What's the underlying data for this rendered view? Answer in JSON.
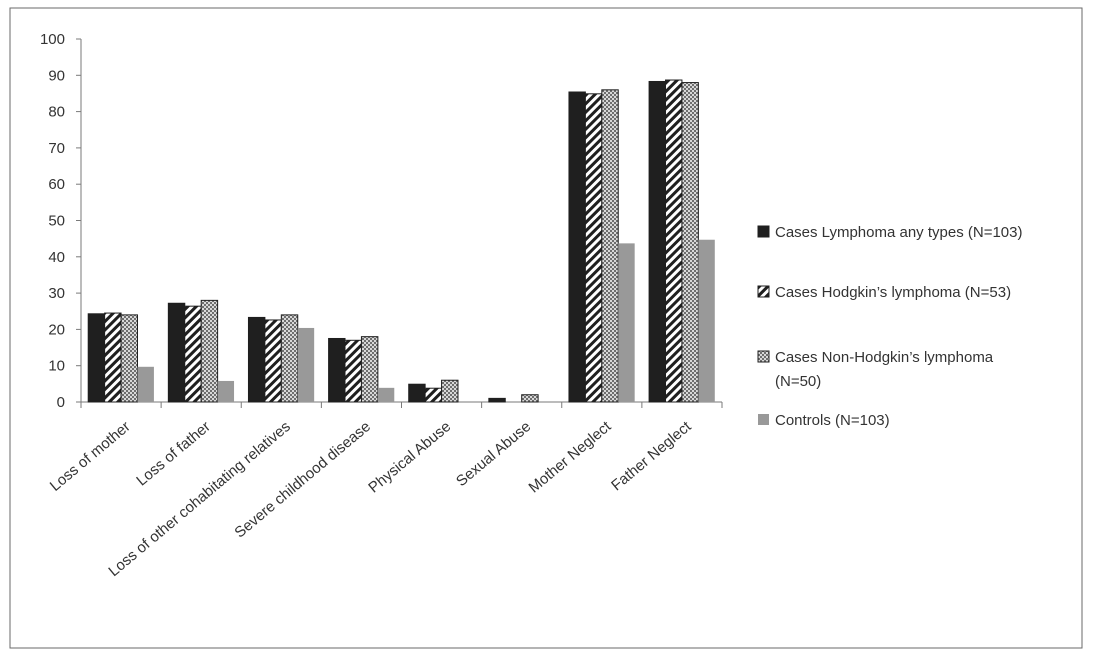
{
  "chart_data": {
    "type": "bar",
    "title": "",
    "xlabel": "",
    "ylabel": "",
    "ylim": [
      0,
      100
    ],
    "yticks": [
      0,
      10,
      20,
      30,
      40,
      50,
      60,
      70,
      80,
      90,
      100
    ],
    "grid": false,
    "legend_position": "right",
    "categories": [
      "Loss of mother",
      "Loss of father",
      "Loss of other cohabitating relatives",
      "Severe childhood disease",
      "Physical Abuse",
      "Sexual Abuse",
      "Mother Neglect",
      "Father Neglect"
    ],
    "series": [
      {
        "name": "Cases Lymphoma any types (N=103)",
        "legend_lines": [
          "Cases Lymphoma any types (N=103)"
        ],
        "color": "#1f1f1f",
        "pattern": "solid",
        "values": [
          24.3,
          27.2,
          23.3,
          17.5,
          4.9,
          1.0,
          85.4,
          88.3
        ]
      },
      {
        "name": "Cases Hodgkin’s lymphoma (N=53)",
        "legend_lines": [
          "Cases Hodgkin’s lymphoma (N=53)"
        ],
        "color": "#1f1f1f",
        "pattern": "diagonal",
        "values": [
          24.5,
          26.4,
          22.6,
          17.0,
          3.8,
          0.0,
          84.9,
          88.7
        ]
      },
      {
        "name": "Cases Non-Hodgkin’s lymphoma (N=50)",
        "legend_lines": [
          "Cases Non-Hodgkin’s lymphoma",
          "(N=50)"
        ],
        "color": "#8a8a8a",
        "pattern": "dotted",
        "values": [
          24.0,
          28.0,
          24.0,
          18.0,
          6.0,
          2.0,
          86.0,
          88.0
        ]
      },
      {
        "name": "Controls (N=103)",
        "legend_lines": [
          "Controls (N=103)"
        ],
        "color": "#999999",
        "pattern": "solid-gray",
        "values": [
          9.7,
          5.8,
          20.4,
          3.9,
          0.0,
          0.0,
          43.7,
          44.7
        ]
      }
    ]
  }
}
